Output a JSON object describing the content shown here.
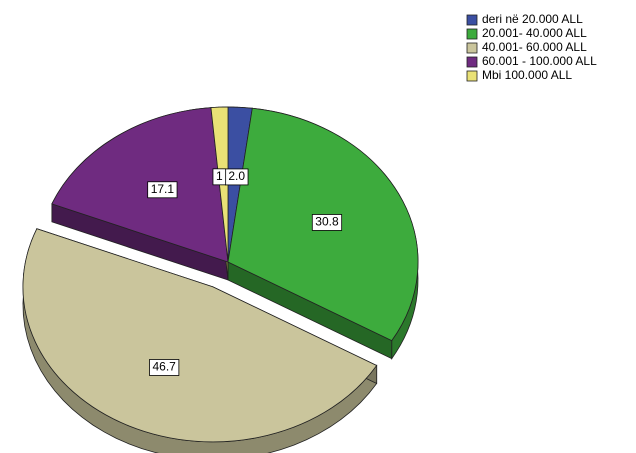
{
  "chart_data": {
    "type": "pie",
    "categories": [
      "deri në 20.000 ALL",
      "20.001- 40.000 ALL",
      "40.001- 60.000 ALL",
      "60.001  - 100.000 ALL",
      "Mbi 100.000 ALL"
    ],
    "values": [
      2.0,
      30.8,
      46.7,
      17.1,
      1.4
    ],
    "value_labels": [
      "2.0",
      "30.8",
      "46.7",
      "17.1",
      "1"
    ],
    "colors": [
      "#3b4fa2",
      "#3dab3d",
      "#cac59c",
      "#6f2b80",
      "#e9e176"
    ],
    "exploded": [
      false,
      false,
      true,
      false,
      false
    ],
    "legend": "top-right"
  }
}
